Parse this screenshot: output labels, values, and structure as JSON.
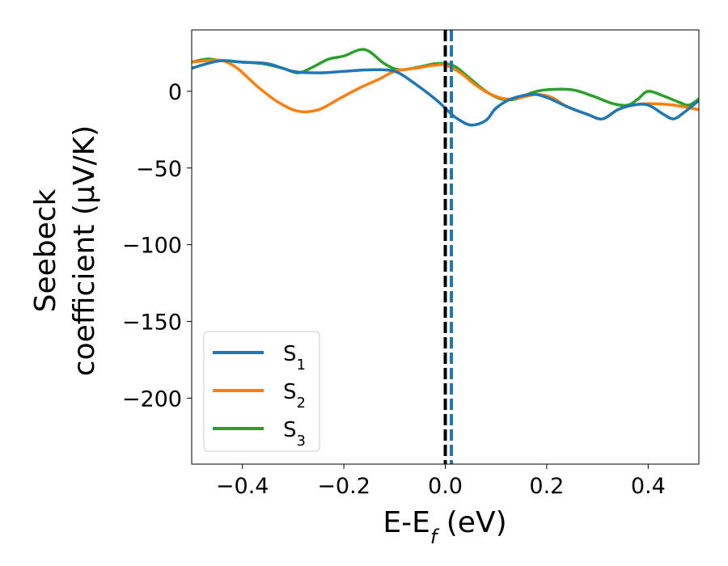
{
  "chart_data": {
    "type": "line",
    "xlabel_main": "E-E",
    "xlabel_sub": "f",
    "xlabel_unit": " (eV)",
    "ylabel_line1": "Seebeck",
    "ylabel_line2": "coefficient  (μV/K)",
    "xlim": [
      -0.5,
      0.5
    ],
    "ylim": [
      -243,
      40
    ],
    "x_ticks": [
      -0.4,
      -0.2,
      0.0,
      0.2,
      0.4
    ],
    "x_tick_labels": [
      "−0.4",
      "−0.2",
      "0.0",
      "0.2",
      "0.4"
    ],
    "y_ticks": [
      0,
      -50,
      -100,
      -150,
      -200
    ],
    "y_tick_labels": [
      "0",
      "−50",
      "−100",
      "−150",
      "−200"
    ],
    "grid": false,
    "legend_position": "lower-left",
    "vlines": [
      {
        "x": 0.0,
        "color": "#000000",
        "style": "dashed"
      },
      {
        "x": 0.012,
        "color": "#1f77b4",
        "style": "dashed"
      }
    ],
    "series": [
      {
        "name": "S",
        "subscript": "1",
        "color": "#1f77b4",
        "points": [
          [
            -0.5,
            15
          ],
          [
            -0.47,
            18
          ],
          [
            -0.44,
            20
          ],
          [
            -0.4,
            19
          ],
          [
            -0.35,
            18
          ],
          [
            -0.3,
            13
          ],
          [
            -0.25,
            12
          ],
          [
            -0.2,
            13
          ],
          [
            -0.15,
            14
          ],
          [
            -0.1,
            13
          ],
          [
            -0.06,
            5
          ],
          [
            -0.02,
            -5
          ],
          [
            0.0,
            -11
          ],
          [
            0.02,
            -17
          ],
          [
            0.05,
            -22
          ],
          [
            0.08,
            -19
          ],
          [
            0.1,
            -11
          ],
          [
            0.13,
            -5
          ],
          [
            0.17,
            -2
          ],
          [
            0.2,
            -4
          ],
          [
            0.24,
            -10
          ],
          [
            0.28,
            -15
          ],
          [
            0.31,
            -18
          ],
          [
            0.34,
            -12
          ],
          [
            0.37,
            -9
          ],
          [
            0.4,
            -9
          ],
          [
            0.43,
            -15
          ],
          [
            0.45,
            -18
          ],
          [
            0.47,
            -14
          ],
          [
            0.5,
            -6
          ]
        ]
      },
      {
        "name": "S",
        "subscript": "2",
        "color": "#ff7f0e",
        "points": [
          [
            -0.5,
            19
          ],
          [
            -0.47,
            20
          ],
          [
            -0.44,
            20
          ],
          [
            -0.41,
            15
          ],
          [
            -0.37,
            3
          ],
          [
            -0.33,
            -7
          ],
          [
            -0.29,
            -13
          ],
          [
            -0.25,
            -12
          ],
          [
            -0.21,
            -5
          ],
          [
            -0.17,
            2
          ],
          [
            -0.13,
            8
          ],
          [
            -0.1,
            13
          ],
          [
            -0.06,
            15
          ],
          [
            -0.02,
            17
          ],
          [
            0.0,
            17
          ],
          [
            0.03,
            12
          ],
          [
            0.06,
            4
          ],
          [
            0.09,
            -2
          ],
          [
            0.12,
            -5
          ],
          [
            0.15,
            -4
          ],
          [
            0.18,
            -2
          ],
          [
            0.21,
            -4
          ],
          [
            0.24,
            -10
          ],
          [
            0.28,
            -15
          ],
          [
            0.31,
            -18
          ],
          [
            0.34,
            -12
          ],
          [
            0.37,
            -9
          ],
          [
            0.4,
            -8
          ],
          [
            0.45,
            -9
          ],
          [
            0.5,
            -12
          ]
        ]
      },
      {
        "name": "S",
        "subscript": "3",
        "color": "#2ca02c",
        "points": [
          [
            -0.5,
            19
          ],
          [
            -0.47,
            21
          ],
          [
            -0.44,
            20
          ],
          [
            -0.4,
            19
          ],
          [
            -0.36,
            18
          ],
          [
            -0.32,
            15
          ],
          [
            -0.29,
            12
          ],
          [
            -0.26,
            16
          ],
          [
            -0.23,
            21
          ],
          [
            -0.2,
            23
          ],
          [
            -0.17,
            27
          ],
          [
            -0.15,
            26
          ],
          [
            -0.12,
            18
          ],
          [
            -0.09,
            14
          ],
          [
            -0.05,
            16
          ],
          [
            -0.02,
            18
          ],
          [
            0.0,
            18
          ],
          [
            0.02,
            16
          ],
          [
            0.05,
            8
          ],
          [
            0.08,
            0
          ],
          [
            0.11,
            -5
          ],
          [
            0.14,
            -5
          ],
          [
            0.17,
            -1
          ],
          [
            0.2,
            1
          ],
          [
            0.25,
            1
          ],
          [
            0.29,
            -3
          ],
          [
            0.33,
            -8
          ],
          [
            0.36,
            -9
          ],
          [
            0.38,
            -5
          ],
          [
            0.4,
            0
          ],
          [
            0.43,
            -3
          ],
          [
            0.46,
            -7
          ],
          [
            0.48,
            -9
          ],
          [
            0.5,
            -5
          ]
        ]
      }
    ]
  }
}
